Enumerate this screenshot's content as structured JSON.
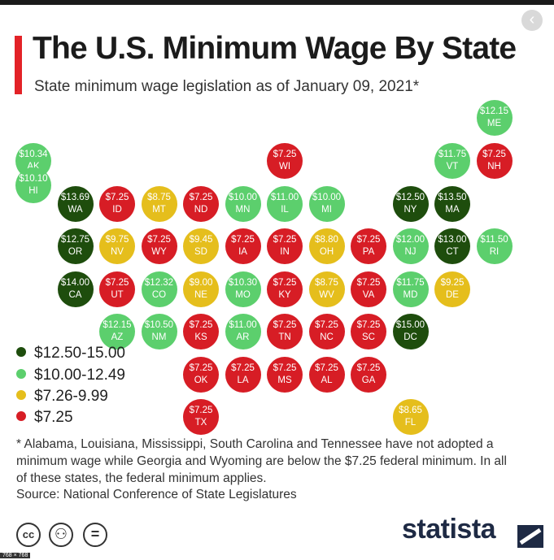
{
  "title": "The U.S. Minimum Wage By State",
  "subtitle": "State minimum wage legislation as of January 09, 2021*",
  "colors": {
    "dark_green": "#1e4d0d",
    "light_green": "#5ccf6d",
    "yellow": "#e5be1c",
    "red": "#d71d25",
    "accent": "#e32227",
    "brand": "#1e2a44"
  },
  "legend": [
    {
      "label": "$12.50-15.00",
      "color": "#1e4d0d"
    },
    {
      "label": "$10.00-12.49",
      "color": "#5ccf6d"
    },
    {
      "label": "$7.26-9.99",
      "color": "#e5be1c"
    },
    {
      "label": "$7.25",
      "color": "#d71d25"
    }
  ],
  "chart_data": {
    "type": "tile-map",
    "title": "The U.S. Minimum Wage By State",
    "subtitle": "State minimum wage legislation as of January 09, 2021*",
    "states": [
      {
        "abbr": "AK",
        "wage": "$10.34",
        "col": 0,
        "row": 0,
        "tier": 1
      },
      {
        "abbr": "HI",
        "wage": "$10.10",
        "col": 0,
        "row": 1,
        "tier": 1
      },
      {
        "abbr": "ME",
        "wage": "$12.15",
        "col": 11,
        "row": -1,
        "tier": 1
      },
      {
        "abbr": "WI",
        "wage": "$7.25",
        "col": 6,
        "row": 0,
        "tier": 3
      },
      {
        "abbr": "VT",
        "wage": "$11.75",
        "col": 10,
        "row": 0,
        "tier": 1
      },
      {
        "abbr": "NH",
        "wage": "$7.25",
        "col": 11,
        "row": 0,
        "tier": 3
      },
      {
        "abbr": "WA",
        "wage": "$13.69",
        "col": 1,
        "row": 1,
        "tier": 0
      },
      {
        "abbr": "ID",
        "wage": "$7.25",
        "col": 2,
        "row": 1,
        "tier": 3
      },
      {
        "abbr": "MT",
        "wage": "$8.75",
        "col": 3,
        "row": 1,
        "tier": 2
      },
      {
        "abbr": "ND",
        "wage": "$7.25",
        "col": 4,
        "row": 1,
        "tier": 3
      },
      {
        "abbr": "MN",
        "wage": "$10.00",
        "col": 5,
        "row": 1,
        "tier": 1
      },
      {
        "abbr": "IL",
        "wage": "$11.00",
        "col": 6,
        "row": 1,
        "tier": 1
      },
      {
        "abbr": "MI",
        "wage": "$10.00",
        "col": 7,
        "row": 1,
        "tier": 1
      },
      {
        "abbr": "NY",
        "wage": "$12.50",
        "col": 9,
        "row": 1,
        "tier": 0
      },
      {
        "abbr": "MA",
        "wage": "$13.50",
        "col": 10,
        "row": 1,
        "tier": 0
      },
      {
        "abbr": "OR",
        "wage": "$12.75",
        "col": 1,
        "row": 2,
        "tier": 0
      },
      {
        "abbr": "NV",
        "wage": "$9.75",
        "col": 2,
        "row": 2,
        "tier": 2
      },
      {
        "abbr": "WY",
        "wage": "$7.25",
        "col": 3,
        "row": 2,
        "tier": 3
      },
      {
        "abbr": "SD",
        "wage": "$9.45",
        "col": 4,
        "row": 2,
        "tier": 2
      },
      {
        "abbr": "IA",
        "wage": "$7.25",
        "col": 5,
        "row": 2,
        "tier": 3
      },
      {
        "abbr": "IN",
        "wage": "$7.25",
        "col": 6,
        "row": 2,
        "tier": 3
      },
      {
        "abbr": "OH",
        "wage": "$8.80",
        "col": 7,
        "row": 2,
        "tier": 2
      },
      {
        "abbr": "PA",
        "wage": "$7.25",
        "col": 8,
        "row": 2,
        "tier": 3
      },
      {
        "abbr": "NJ",
        "wage": "$12.00",
        "col": 9,
        "row": 2,
        "tier": 1
      },
      {
        "abbr": "CT",
        "wage": "$13.00",
        "col": 10,
        "row": 2,
        "tier": 0
      },
      {
        "abbr": "RI",
        "wage": "$11.50",
        "col": 11,
        "row": 2,
        "tier": 1
      },
      {
        "abbr": "CA",
        "wage": "$14.00",
        "col": 1,
        "row": 3,
        "tier": 0
      },
      {
        "abbr": "UT",
        "wage": "$7.25",
        "col": 2,
        "row": 3,
        "tier": 3
      },
      {
        "abbr": "CO",
        "wage": "$12.32",
        "col": 3,
        "row": 3,
        "tier": 1
      },
      {
        "abbr": "NE",
        "wage": "$9.00",
        "col": 4,
        "row": 3,
        "tier": 2
      },
      {
        "abbr": "MO",
        "wage": "$10.30",
        "col": 5,
        "row": 3,
        "tier": 1
      },
      {
        "abbr": "KY",
        "wage": "$7.25",
        "col": 6,
        "row": 3,
        "tier": 3
      },
      {
        "abbr": "WV",
        "wage": "$8.75",
        "col": 7,
        "row": 3,
        "tier": 2
      },
      {
        "abbr": "VA",
        "wage": "$7.25",
        "col": 8,
        "row": 3,
        "tier": 3
      },
      {
        "abbr": "MD",
        "wage": "$11.75",
        "col": 9,
        "row": 3,
        "tier": 1
      },
      {
        "abbr": "DE",
        "wage": "$9.25",
        "col": 10,
        "row": 3,
        "tier": 2
      },
      {
        "abbr": "AZ",
        "wage": "$12.15",
        "col": 2,
        "row": 4,
        "tier": 1
      },
      {
        "abbr": "NM",
        "wage": "$10.50",
        "col": 3,
        "row": 4,
        "tier": 1
      },
      {
        "abbr": "KS",
        "wage": "$7.25",
        "col": 4,
        "row": 4,
        "tier": 3
      },
      {
        "abbr": "AR",
        "wage": "$11.00",
        "col": 5,
        "row": 4,
        "tier": 1
      },
      {
        "abbr": "TN",
        "wage": "$7.25",
        "col": 6,
        "row": 4,
        "tier": 3
      },
      {
        "abbr": "NC",
        "wage": "$7.25",
        "col": 7,
        "row": 4,
        "tier": 3
      },
      {
        "abbr": "SC",
        "wage": "$7.25",
        "col": 8,
        "row": 4,
        "tier": 3
      },
      {
        "abbr": "DC",
        "wage": "$15.00",
        "col": 9,
        "row": 4,
        "tier": 0
      },
      {
        "abbr": "OK",
        "wage": "$7.25",
        "col": 4,
        "row": 5,
        "tier": 3
      },
      {
        "abbr": "LA",
        "wage": "$7.25",
        "col": 5,
        "row": 5,
        "tier": 3
      },
      {
        "abbr": "MS",
        "wage": "$7.25",
        "col": 6,
        "row": 5,
        "tier": 3
      },
      {
        "abbr": "AL",
        "wage": "$7.25",
        "col": 7,
        "row": 5,
        "tier": 3
      },
      {
        "abbr": "GA",
        "wage": "$7.25",
        "col": 8,
        "row": 5,
        "tier": 3
      },
      {
        "abbr": "TX",
        "wage": "$7.25",
        "col": 4,
        "row": 6,
        "tier": 3
      },
      {
        "abbr": "FL",
        "wage": "$8.65",
        "col": 9,
        "row": 6,
        "tier": 2
      }
    ]
  },
  "footnote": "* Alabama, Louisiana, Mississippi, South Carolina and Tennessee have not adopted a minimum wage while Georgia and Wyoming are below the $7.25 federal minimum. In all of these states, the federal minimum applies.",
  "source": "Source: National Conference of State Legislatures",
  "license_icons": [
    {
      "name": "cc-icon",
      "glyph": "cc"
    },
    {
      "name": "attribution-icon",
      "glyph": "⚇"
    },
    {
      "name": "no-derivatives-icon",
      "glyph": "="
    }
  ],
  "brand": "statista",
  "back_glyph": "‹",
  "size_tag": "768 × 768"
}
